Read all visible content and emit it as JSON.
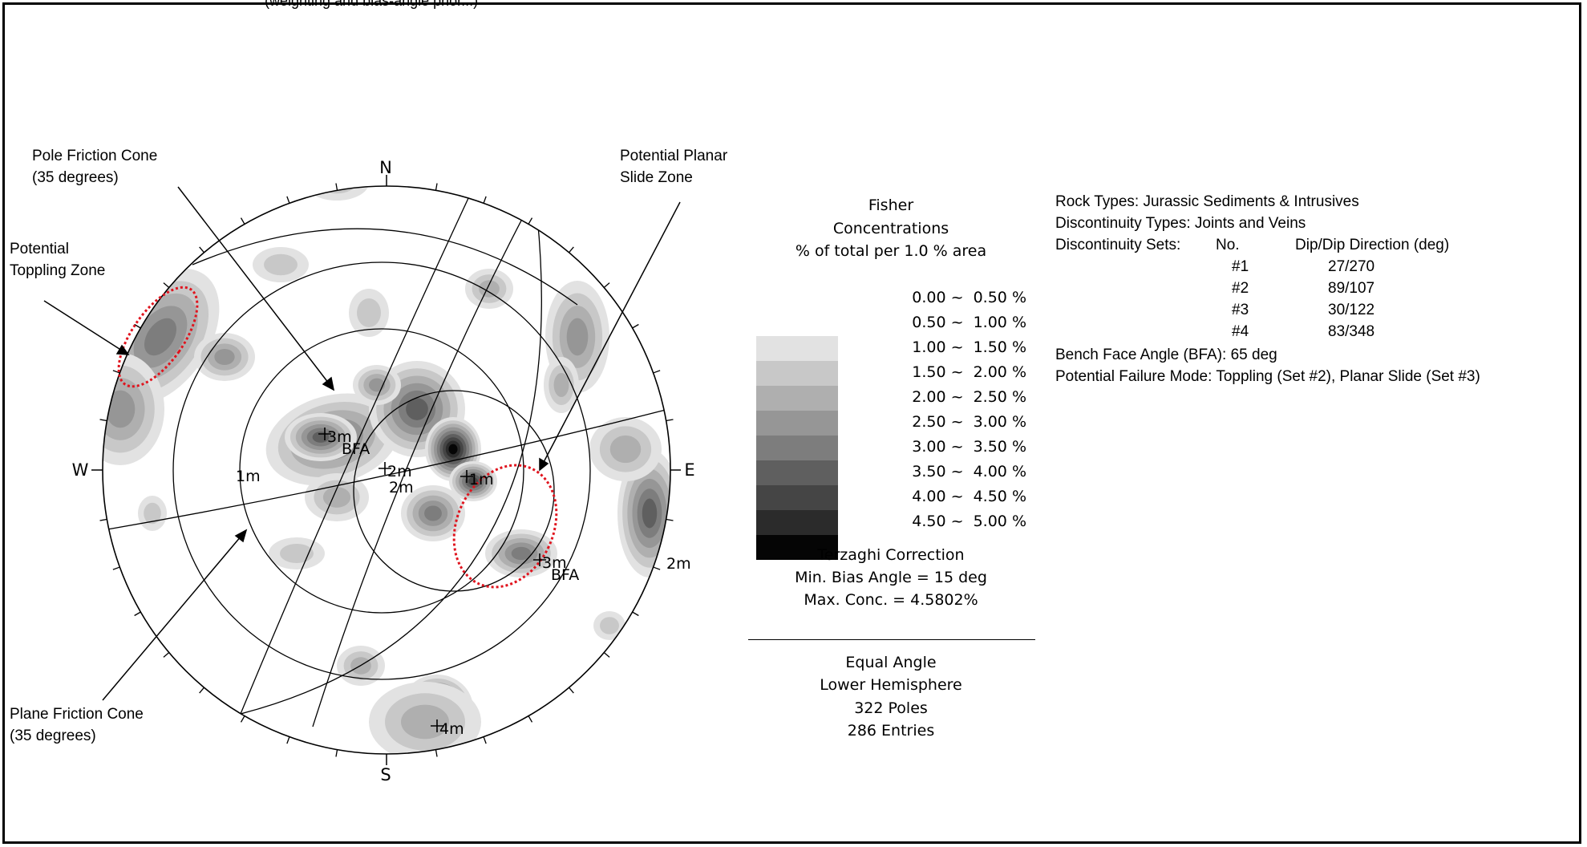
{
  "top_clipped_text": "(weighting and bias-angle prior...)",
  "compass": {
    "north": "N",
    "south": "S",
    "east": "E",
    "west": "W"
  },
  "annotations": {
    "pole_friction_cone": [
      "Pole Friction Cone",
      "(35 degrees)"
    ],
    "potential_toppling_zone": [
      "Potential",
      "Toppling Zone"
    ],
    "potential_planar_slide_zone": [
      "Potential Planar",
      "Slide Zone"
    ],
    "plane_friction_cone": [
      "Plane Friction Cone",
      "(35 degrees)"
    ]
  },
  "set_markers": [
    {
      "label": "1m"
    },
    {
      "label": "1m"
    },
    {
      "label": "2m"
    },
    {
      "label": "2m"
    },
    {
      "label": "2m"
    },
    {
      "label": "3m"
    },
    {
      "label": "3m"
    },
    {
      "label": "4m"
    },
    {
      "label": "BFA"
    },
    {
      "label": "BFA"
    }
  ],
  "legend": {
    "title_lines": [
      "Fisher",
      "Concentrations",
      "% of total per 1.0 % area"
    ],
    "bins": [
      {
        "range": "0.00 ~  0.50 %",
        "color": "#ffffff"
      },
      {
        "range": "0.50 ~  1.00 %",
        "color": "#e2e2e2"
      },
      {
        "range": "1.00 ~  1.50 %",
        "color": "#c8c8c8"
      },
      {
        "range": "1.50 ~  2.00 %",
        "color": "#afafaf"
      },
      {
        "range": "2.00 ~  2.50 %",
        "color": "#969696"
      },
      {
        "range": "2.50 ~  3.00 %",
        "color": "#7d7d7d"
      },
      {
        "range": "3.00 ~  3.50 %",
        "color": "#5f5f5f"
      },
      {
        "range": "3.50 ~  4.00 %",
        "color": "#454545"
      },
      {
        "range": "4.00 ~  4.50 %",
        "color": "#2b2b2b"
      },
      {
        "range": "4.50 ~  5.00 %",
        "color": "#050505"
      }
    ],
    "terzaghi": [
      "Terzaghi Correction",
      "Min. Bias Angle = 15 deg",
      "Max. Conc. = 4.5802%"
    ],
    "projection": [
      "Equal Angle",
      "Lower Hemisphere",
      "322 Poles",
      "286 Entries"
    ]
  },
  "info": {
    "rock_types": "Rock Types: Jurassic Sediments & Intrusives",
    "discontinuity_types": "Discontinuity Types: Joints and Veins",
    "sets_label": "Discontinuity Sets:",
    "col_no": "No.",
    "col_dip": "Dip/Dip Direction (deg)",
    "sets": [
      {
        "no": "#1",
        "dip": "27/270"
      },
      {
        "no": "#2",
        "dip": "89/107"
      },
      {
        "no": "#3",
        "dip": "30/122"
      },
      {
        "no": "#4",
        "dip": "83/348"
      }
    ],
    "bench_face_angle": "Bench Face Angle (BFA):  65 deg",
    "failure_mode": "Potential Failure Mode:  Toppling (Set #2), Planar Slide (Set #3)"
  },
  "colors": {
    "zone_outline": "#e0141e",
    "ink": "#000000"
  }
}
